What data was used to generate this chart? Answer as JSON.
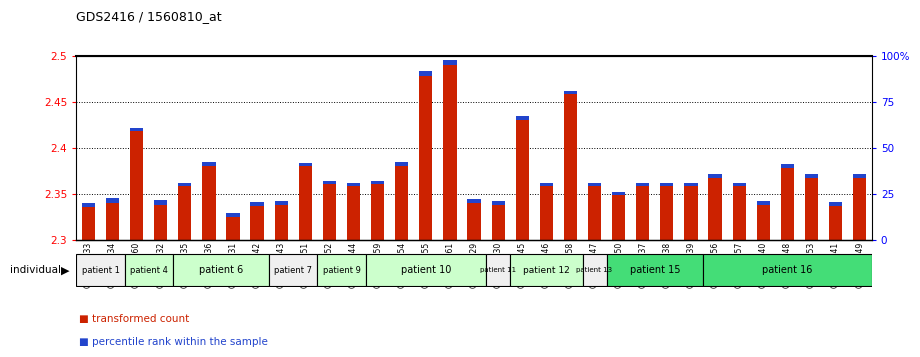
{
  "title": "GDS2416 / 1560810_at",
  "samples": [
    "GSM135233",
    "GSM135234",
    "GSM135260",
    "GSM135232",
    "GSM135235",
    "GSM135236",
    "GSM135231",
    "GSM135242",
    "GSM135243",
    "GSM135251",
    "GSM135252",
    "GSM135244",
    "GSM135259",
    "GSM135254",
    "GSM135255",
    "GSM135261",
    "GSM135229",
    "GSM135230",
    "GSM135245",
    "GSM135246",
    "GSM135258",
    "GSM135247",
    "GSM135250",
    "GSM135237",
    "GSM135238",
    "GSM135239",
    "GSM135256",
    "GSM135257",
    "GSM135240",
    "GSM135248",
    "GSM135253",
    "GSM135241",
    "GSM135249"
  ],
  "red_values": [
    2.335,
    2.34,
    2.418,
    2.338,
    2.358,
    2.38,
    2.325,
    2.337,
    2.338,
    2.38,
    2.36,
    2.358,
    2.36,
    2.38,
    2.478,
    2.49,
    2.34,
    2.338,
    2.43,
    2.358,
    2.458,
    2.358,
    2.348,
    2.358,
    2.358,
    2.358,
    2.367,
    2.358,
    2.338,
    2.378,
    2.367,
    2.337,
    2.367
  ],
  "blue_values": [
    0.005,
    0.005,
    0.003,
    0.005,
    0.004,
    0.004,
    0.004,
    0.004,
    0.004,
    0.003,
    0.004,
    0.004,
    0.004,
    0.004,
    0.005,
    0.005,
    0.004,
    0.004,
    0.004,
    0.004,
    0.004,
    0.004,
    0.004,
    0.004,
    0.004,
    0.004,
    0.004,
    0.004,
    0.004,
    0.004,
    0.004,
    0.004,
    0.004
  ],
  "ymin": 2.3,
  "ymax": 2.5,
  "yticks_left": [
    2.3,
    2.35,
    2.4,
    2.45,
    2.5
  ],
  "yticks_right": [
    0,
    25,
    50,
    75,
    100
  ],
  "yticks_right_labels": [
    "0",
    "25",
    "50",
    "75",
    "100%"
  ],
  "gridlines": [
    2.35,
    2.4,
    2.45
  ],
  "patient_groups": [
    {
      "label": "patient 1",
      "start": 0,
      "end": 2,
      "color": "#f0f0f0"
    },
    {
      "label": "patient 4",
      "start": 2,
      "end": 4,
      "color": "#ccffcc"
    },
    {
      "label": "patient 6",
      "start": 4,
      "end": 8,
      "color": "#ccffcc"
    },
    {
      "label": "patient 7",
      "start": 8,
      "end": 10,
      "color": "#f0f0f0"
    },
    {
      "label": "patient 9",
      "start": 10,
      "end": 12,
      "color": "#ccffcc"
    },
    {
      "label": "patient 10",
      "start": 12,
      "end": 17,
      "color": "#ccffcc"
    },
    {
      "label": "patient 11",
      "start": 17,
      "end": 18,
      "color": "#f0f0f0"
    },
    {
      "label": "patient 12",
      "start": 18,
      "end": 21,
      "color": "#ccffcc"
    },
    {
      "label": "patient 13",
      "start": 21,
      "end": 22,
      "color": "#f0f0f0"
    },
    {
      "label": "patient 15",
      "start": 22,
      "end": 26,
      "color": "#44dd77"
    },
    {
      "label": "patient 16",
      "start": 26,
      "end": 33,
      "color": "#44dd77"
    }
  ],
  "bar_color_red": "#cc2200",
  "bar_color_blue": "#2244cc",
  "bar_width": 0.55,
  "fig_bg": "#ffffff",
  "axis_bg": "#ffffff"
}
